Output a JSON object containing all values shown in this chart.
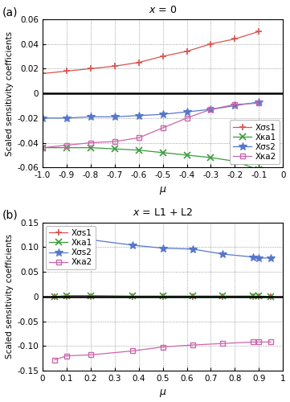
{
  "panel_a": {
    "title_parts": [
      "x",
      " = 0"
    ],
    "xlabel": "μ",
    "ylabel": "Scaled sensitivity coefficients",
    "xlim": [
      -1.0,
      0.0
    ],
    "ylim": [
      -0.06,
      0.06
    ],
    "xticks": [
      -1.0,
      -0.9,
      -0.8,
      -0.7,
      -0.6,
      -0.5,
      -0.4,
      -0.3,
      -0.2,
      -0.1,
      0.0
    ],
    "yticks": [
      -0.06,
      -0.04,
      -0.02,
      0.0,
      0.02,
      0.04,
      0.06
    ],
    "series": [
      {
        "key": "Xσs1",
        "label": "Xσs1",
        "color": "#d9534f",
        "marker": "+",
        "markersize": 6,
        "markeredgewidth": 1.2,
        "linewidth": 0.9,
        "x": [
          -1.0,
          -0.9,
          -0.8,
          -0.7,
          -0.6,
          -0.5,
          -0.4,
          -0.3,
          -0.2,
          -0.1
        ],
        "y": [
          0.016,
          0.018,
          0.02,
          0.022,
          0.025,
          0.03,
          0.034,
          0.04,
          0.044,
          0.05
        ]
      },
      {
        "key": "Xκa1",
        "label": "Xκa1",
        "color": "#3a9a3a",
        "marker": "x",
        "markersize": 6,
        "markeredgewidth": 1.2,
        "linewidth": 0.9,
        "x": [
          -1.0,
          -0.9,
          -0.8,
          -0.7,
          -0.6,
          -0.5,
          -0.4,
          -0.3,
          -0.2,
          -0.1
        ],
        "y": [
          -0.044,
          -0.044,
          -0.044,
          -0.045,
          -0.046,
          -0.048,
          -0.05,
          -0.052,
          -0.055,
          -0.062
        ]
      },
      {
        "key": "Xσs2",
        "label": "Xσs2",
        "color": "#5577cc",
        "marker": "*",
        "markersize": 7,
        "markeredgewidth": 0.8,
        "linewidth": 0.9,
        "x": [
          -1.0,
          -0.9,
          -0.8,
          -0.7,
          -0.6,
          -0.5,
          -0.4,
          -0.3,
          -0.2,
          -0.1
        ],
        "y": [
          -0.02,
          -0.02,
          -0.019,
          -0.019,
          -0.018,
          -0.017,
          -0.015,
          -0.013,
          -0.01,
          -0.007
        ]
      },
      {
        "key": "Xκa2",
        "label": "Xκa2",
        "color": "#cc66aa",
        "marker": "s",
        "markersize": 5,
        "markeredgewidth": 1.0,
        "linewidth": 0.9,
        "x": [
          -1.0,
          -0.9,
          -0.8,
          -0.7,
          -0.6,
          -0.5,
          -0.4,
          -0.3,
          -0.2,
          -0.1
        ],
        "y": [
          -0.044,
          -0.042,
          -0.04,
          -0.039,
          -0.036,
          -0.028,
          -0.02,
          -0.013,
          -0.009,
          -0.008
        ]
      }
    ],
    "legend_loc": "lower right"
  },
  "panel_b": {
    "title_parts": [
      "x",
      " = L1 + L2"
    ],
    "xlabel": "μ",
    "ylabel": "Scaled sensitivity coefficients",
    "xlim": [
      0.0,
      1.0
    ],
    "ylim": [
      -0.15,
      0.15
    ],
    "xticks": [
      0.0,
      0.1,
      0.2,
      0.3,
      0.4,
      0.5,
      0.6,
      0.7,
      0.8,
      0.9,
      1.0
    ],
    "yticks": [
      -0.15,
      -0.1,
      -0.05,
      0.0,
      0.05,
      0.1,
      0.15
    ],
    "series": [
      {
        "key": "Xσs1",
        "label": "Xσs1",
        "color": "#d9534f",
        "marker": "+",
        "markersize": 6,
        "markeredgewidth": 1.2,
        "linewidth": 0.9,
        "x": [
          0.05,
          0.1,
          0.2,
          0.375,
          0.5,
          0.625,
          0.75,
          0.875,
          0.9,
          0.95
        ],
        "y": [
          0.0,
          0.0,
          0.0,
          0.0,
          0.0,
          0.0,
          0.0,
          0.0,
          0.0,
          0.0
        ]
      },
      {
        "key": "Xκa1",
        "label": "Xκa1",
        "color": "#3a9a3a",
        "marker": "x",
        "markersize": 6,
        "markeredgewidth": 1.2,
        "linewidth": 0.9,
        "x": [
          0.05,
          0.1,
          0.2,
          0.375,
          0.5,
          0.625,
          0.75,
          0.875,
          0.9,
          0.95
        ],
        "y": [
          0.0,
          0.002,
          0.002,
          0.001,
          0.001,
          0.001,
          0.001,
          0.001,
          0.001,
          0.0
        ]
      },
      {
        "key": "Xσs2",
        "label": "Xσs2",
        "color": "#5577cc",
        "marker": "*",
        "markersize": 7,
        "markeredgewidth": 0.8,
        "linewidth": 0.9,
        "x": [
          0.05,
          0.1,
          0.2,
          0.375,
          0.5,
          0.625,
          0.75,
          0.875,
          0.9,
          0.95
        ],
        "y": [
          0.092,
          0.115,
          0.115,
          0.104,
          0.098,
          0.096,
          0.086,
          0.08,
          0.078,
          0.078
        ]
      },
      {
        "key": "Xκa2",
        "label": "Xκa2",
        "color": "#cc66aa",
        "marker": "s",
        "markersize": 5,
        "markeredgewidth": 1.0,
        "linewidth": 0.9,
        "x": [
          0.05,
          0.1,
          0.2,
          0.375,
          0.5,
          0.625,
          0.75,
          0.875,
          0.9,
          0.95
        ],
        "y": [
          -0.128,
          -0.12,
          -0.118,
          -0.11,
          -0.102,
          -0.098,
          -0.095,
          -0.092,
          -0.092,
          -0.092
        ]
      }
    ],
    "legend_loc": "upper left"
  }
}
